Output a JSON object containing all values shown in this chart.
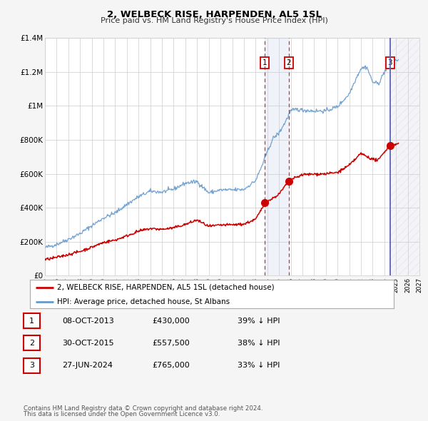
{
  "title": "2, WELBECK RISE, HARPENDEN, AL5 1SL",
  "subtitle": "Price paid vs. HM Land Registry's House Price Index (HPI)",
  "xlim": [
    1995,
    2027
  ],
  "ylim": [
    0,
    1400000
  ],
  "yticks": [
    0,
    200000,
    400000,
    600000,
    800000,
    1000000,
    1200000,
    1400000
  ],
  "ytick_labels": [
    "£0",
    "£200K",
    "£400K",
    "£600K",
    "£800K",
    "£1M",
    "£1.2M",
    "£1.4M"
  ],
  "red_line_color": "#cc0000",
  "blue_line_color": "#6699cc",
  "transactions": [
    {
      "date": 2013.78,
      "price": 430000,
      "label": "1"
    },
    {
      "date": 2015.83,
      "price": 557500,
      "label": "2"
    },
    {
      "date": 2024.49,
      "price": 765000,
      "label": "3"
    }
  ],
  "vline_dates": [
    2013.78,
    2015.83,
    2024.49
  ],
  "shade_start": 2013.78,
  "shade_end": 2015.83,
  "legend_labels": [
    "2, WELBECK RISE, HARPENDEN, AL5 1SL (detached house)",
    "HPI: Average price, detached house, St Albans"
  ],
  "table_rows": [
    {
      "num": "1",
      "date": "08-OCT-2013",
      "price": "£430,000",
      "pct": "39% ↓ HPI"
    },
    {
      "num": "2",
      "date": "30-OCT-2015",
      "price": "£557,500",
      "pct": "38% ↓ HPI"
    },
    {
      "num": "3",
      "date": "27-JUN-2024",
      "price": "£765,000",
      "pct": "33% ↓ HPI"
    }
  ],
  "footnote1": "Contains HM Land Registry data © Crown copyright and database right 2024.",
  "footnote2": "This data is licensed under the Open Government Licence v3.0.",
  "background_color": "#f5f5f5",
  "plot_bg_color": "#ffffff"
}
